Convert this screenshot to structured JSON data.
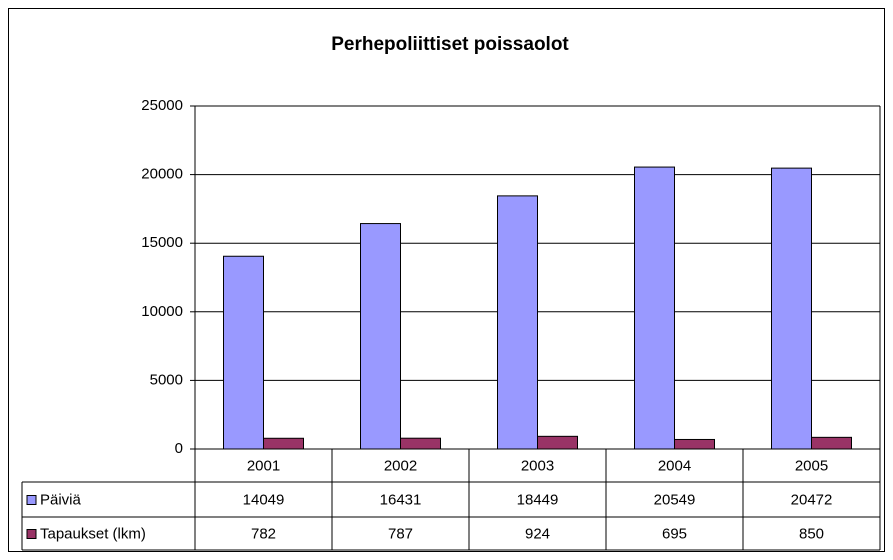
{
  "chart_data": {
    "type": "bar",
    "title": "Perhepoliittiset poissaolot",
    "categories": [
      "2001",
      "2002",
      "2003",
      "2004",
      "2005"
    ],
    "series": [
      {
        "name": "Päiviä",
        "color": "#9999ff",
        "values": [
          14049,
          16431,
          18449,
          20549,
          20472
        ]
      },
      {
        "name": "Tapaukset (lkm)",
        "color": "#993366",
        "values": [
          782,
          787,
          924,
          695,
          850
        ]
      }
    ],
    "ylim": [
      0,
      25000
    ],
    "yticks": [
      0,
      5000,
      10000,
      15000,
      20000,
      25000
    ],
    "grid": true,
    "data_table": true
  }
}
